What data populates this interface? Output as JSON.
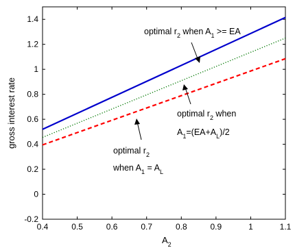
{
  "chart_data": {
    "type": "line",
    "xlabel_main": "A",
    "xlabel_sub": "2",
    "ylabel": "gross interest rate",
    "xlim": [
      0.4,
      1.1
    ],
    "ylim": [
      -0.2,
      1.5
    ],
    "xticks": [
      "0.4",
      "0.5",
      "0.6",
      "0.7",
      "0.8",
      "0.9",
      "1",
      "1.1"
    ],
    "yticks": [
      "-0.2",
      "0",
      "0.2",
      "0.4",
      "0.6",
      "0.8",
      "1",
      "1.2",
      "1.4"
    ],
    "grid": false,
    "series": [
      {
        "id": "high",
        "color": "#0000cc",
        "style": "solid",
        "x": [
          0.4,
          1.1
        ],
        "y": [
          0.52,
          1.415
        ]
      },
      {
        "id": "mid",
        "color": "#007700",
        "style": "dotted",
        "x": [
          0.4,
          1.1
        ],
        "y": [
          0.455,
          1.25
        ]
      },
      {
        "id": "low",
        "color": "#ff0000",
        "style": "dashed",
        "x": [
          0.4,
          1.1
        ],
        "y": [
          0.395,
          1.085
        ]
      }
    ],
    "annotations": {
      "a1": {
        "p1": "optimal  r",
        "s1": "2",
        "p2": "  when  A",
        "s2": "1",
        "p3": " >=  EA"
      },
      "a2": {
        "l1p1": "optimal  r",
        "l1s1": "2",
        "l1p2": "  when",
        "l2p1": "A",
        "l2s1": "1",
        "l2p2": "=(EA+A",
        "l2s2": "L",
        "l2p3": ")/2"
      },
      "a3": {
        "l1p1": "optimal  r",
        "l1s1": "2",
        "l2p1": "when  A",
        "l2s1": "1",
        "l2p2": " = A",
        "l2s2": "L"
      }
    }
  }
}
